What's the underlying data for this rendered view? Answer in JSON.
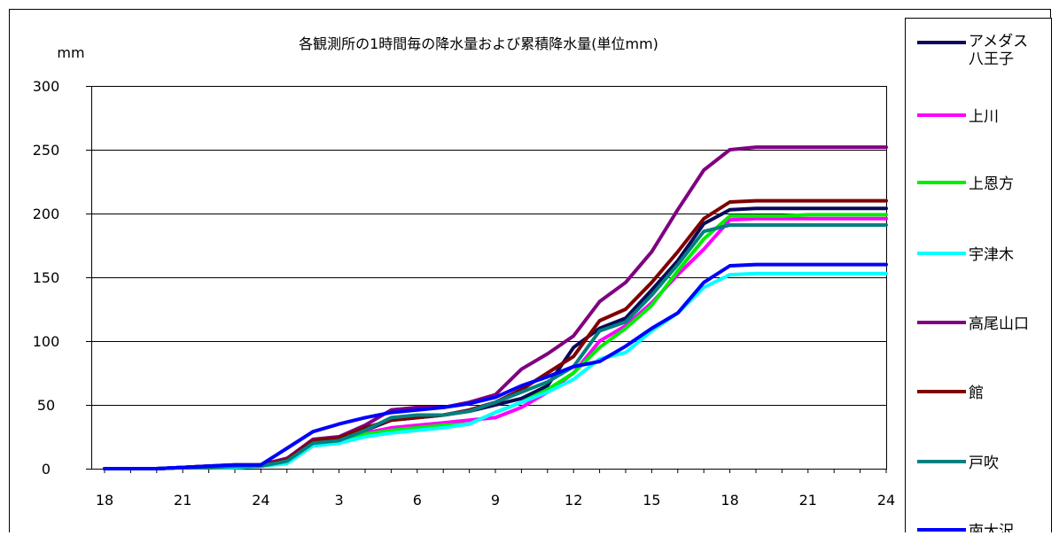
{
  "chart_data": {
    "type": "line",
    "title": "各観測所の1時間毎の降水量および累積降水量(単位mm)",
    "ylabel": "mm",
    "xlabel": "",
    "ylim": [
      0,
      300
    ],
    "yticks": [
      "0",
      "50",
      "100",
      "150",
      "200",
      "250",
      "300"
    ],
    "xticks": [
      "18",
      "21",
      "24",
      "3",
      "6",
      "9",
      "12",
      "15",
      "18",
      "21",
      "24"
    ],
    "grid": "horizontal",
    "legend": "right",
    "series": [
      {
        "name": "アメダス\n八王子",
        "color": "#0a0a5a",
        "values": [
          0,
          0,
          0,
          1,
          2,
          2,
          3,
          8,
          20,
          22,
          30,
          38,
          40,
          42,
          45,
          50,
          55,
          65,
          95,
          110,
          118,
          140,
          163,
          192,
          203,
          204,
          204,
          204,
          204,
          204,
          204
        ]
      },
      {
        "name": "上川",
        "color": "#ff00ff",
        "values": [
          0,
          0,
          0,
          1,
          1,
          2,
          2,
          6,
          18,
          20,
          28,
          32,
          34,
          36,
          38,
          40,
          48,
          60,
          75,
          100,
          112,
          130,
          152,
          172,
          195,
          196,
          196,
          196,
          196,
          196,
          196
        ]
      },
      {
        "name": "上恩方",
        "color": "#00ee00",
        "values": [
          0,
          0,
          0,
          1,
          1,
          1,
          2,
          5,
          18,
          20,
          27,
          30,
          32,
          34,
          35,
          44,
          52,
          62,
          75,
          95,
          110,
          128,
          155,
          180,
          198,
          198,
          198,
          199,
          199,
          199,
          199
        ]
      },
      {
        "name": "宇津木",
        "color": "#00ffff",
        "values": [
          0,
          0,
          0,
          1,
          1,
          1,
          2,
          4,
          18,
          20,
          25,
          28,
          30,
          32,
          35,
          44,
          52,
          60,
          70,
          86,
          91,
          108,
          122,
          142,
          152,
          153,
          153,
          153,
          153,
          153,
          153
        ]
      },
      {
        "name": "高尾山口",
        "color": "#800080",
        "values": [
          0,
          0,
          0,
          1,
          2,
          2,
          3,
          8,
          23,
          25,
          34,
          46,
          48,
          48,
          52,
          58,
          78,
          90,
          104,
          131,
          146,
          170,
          203,
          234,
          250,
          252,
          252,
          252,
          252,
          252,
          252
        ]
      },
      {
        "name": "館",
        "color": "#800000",
        "values": [
          0,
          0,
          0,
          1,
          2,
          3,
          3,
          7,
          22,
          24,
          32,
          38,
          40,
          42,
          46,
          52,
          62,
          75,
          88,
          116,
          125,
          146,
          170,
          196,
          209,
          210,
          210,
          210,
          210,
          210,
          210
        ]
      },
      {
        "name": "戸吹",
        "color": "#008080",
        "values": [
          0,
          0,
          0,
          1,
          1,
          2,
          2,
          6,
          20,
          22,
          30,
          40,
          42,
          42,
          45,
          52,
          60,
          68,
          80,
          108,
          115,
          136,
          160,
          186,
          191,
          191,
          191,
          191,
          191,
          191,
          191
        ]
      },
      {
        "name": "南大沢",
        "color": "#0000ff",
        "values": [
          0,
          0,
          0,
          1,
          2,
          3,
          3,
          16,
          29,
          35,
          40,
          44,
          46,
          48,
          51,
          56,
          65,
          72,
          80,
          84,
          96,
          110,
          122,
          146,
          159,
          160,
          160,
          160,
          160,
          160,
          160
        ]
      }
    ]
  }
}
